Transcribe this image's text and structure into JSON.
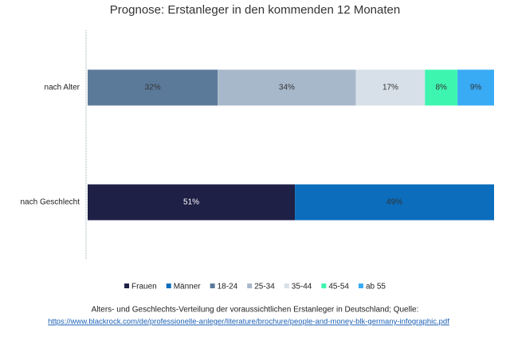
{
  "chart_data": {
    "type": "stacked-bar-horizontal",
    "title": "Prognose: Erstanleger in den kommenden 12 Monaten",
    "categories": [
      "nach Alter",
      "nach Geschlecht"
    ],
    "series": [
      {
        "name": "Frauen",
        "color": "#1e2046",
        "values": [
          null,
          51
        ],
        "value_labels": [
          null,
          "51%"
        ]
      },
      {
        "name": "Männer",
        "color": "#0b6dbb",
        "values": [
          null,
          49
        ],
        "value_labels": [
          null,
          "49%"
        ]
      },
      {
        "name": "18-24",
        "color": "#5b7a9a",
        "values": [
          32,
          null
        ],
        "value_labels": [
          "32%",
          null
        ]
      },
      {
        "name": "25-34",
        "color": "#a8b8cb",
        "values": [
          34,
          null
        ],
        "value_labels": [
          "34%",
          null
        ]
      },
      {
        "name": "35-44",
        "color": "#d7e0e8",
        "values": [
          17,
          null
        ],
        "value_labels": [
          "17%",
          null
        ]
      },
      {
        "name": "45-54",
        "color": "#3ef5b0",
        "values": [
          8,
          null
        ],
        "value_labels": [
          "8%",
          null
        ]
      },
      {
        "name": "ab 55",
        "color": "#39aaf4",
        "values": [
          9,
          null
        ],
        "value_labels": [
          "9%",
          null
        ]
      }
    ],
    "xlim": [
      0,
      100
    ],
    "legend": "bottom",
    "caption": "Alters- und Geschlechts-Verteilung der voraussichtlichen Erstanleger in Deutschland; Quelle:",
    "source_url": "https://www.blackrock.com/de/professionelle-anleger/literature/brochure/people-and-money-blk-germany-infographic.pdf"
  }
}
